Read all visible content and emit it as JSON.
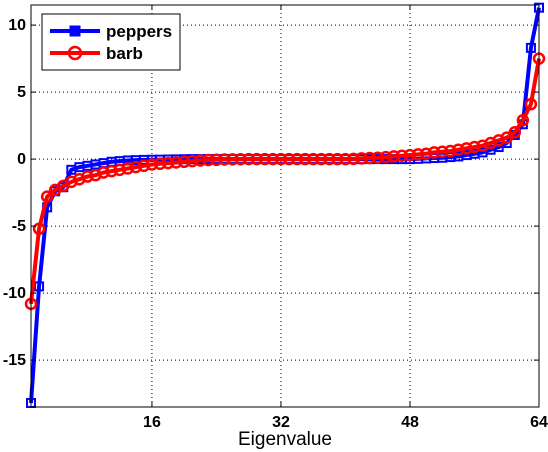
{
  "chart_data": {
    "type": "line",
    "xlabel": "Eigenvalue",
    "ylabel": "",
    "xlim": [
      1,
      64
    ],
    "ylim": [
      -18.5,
      11.5
    ],
    "xticks": [
      16,
      32,
      48,
      64
    ],
    "yticks": [
      10,
      5,
      0,
      -5,
      -10,
      -15
    ],
    "grid": true,
    "legend_position": "top-left",
    "series": [
      {
        "name": "peppers",
        "color": "#0000ff",
        "marker": "square",
        "values": [
          -18.2,
          -9.5,
          -3.6,
          -2.4,
          -2.1,
          -0.8,
          -0.6,
          -0.5,
          -0.4,
          -0.3,
          -0.2,
          -0.15,
          -0.1,
          -0.08,
          -0.06,
          -0.05,
          -0.04,
          -0.03,
          -0.02,
          -0.01,
          0,
          0,
          0,
          0,
          0,
          0,
          0,
          0,
          0,
          0,
          0,
          0,
          0,
          0,
          0,
          0,
          0,
          0,
          0,
          0,
          0,
          0,
          0,
          0,
          0,
          0,
          0,
          0,
          0.02,
          0.05,
          0.08,
          0.1,
          0.15,
          0.2,
          0.3,
          0.4,
          0.5,
          0.7,
          0.9,
          1.2,
          1.8,
          2.6,
          8.3,
          11.3
        ]
      },
      {
        "name": "barb",
        "color": "#ff0000",
        "marker": "circle",
        "values": [
          -10.8,
          -5.2,
          -2.8,
          -2.3,
          -2.0,
          -1.7,
          -1.5,
          -1.3,
          -1.2,
          -1.0,
          -0.9,
          -0.8,
          -0.7,
          -0.6,
          -0.5,
          -0.4,
          -0.35,
          -0.3,
          -0.25,
          -0.2,
          -0.15,
          -0.1,
          -0.07,
          -0.05,
          -0.03,
          -0.02,
          -0.01,
          0,
          0,
          0,
          0,
          0,
          0,
          0,
          0,
          0,
          0,
          0,
          0,
          0,
          0.02,
          0.05,
          0.08,
          0.1,
          0.15,
          0.2,
          0.25,
          0.3,
          0.35,
          0.4,
          0.5,
          0.55,
          0.6,
          0.7,
          0.8,
          0.9,
          1.0,
          1.2,
          1.4,
          1.6,
          2.0,
          2.9,
          4.1,
          7.5
        ]
      }
    ]
  }
}
